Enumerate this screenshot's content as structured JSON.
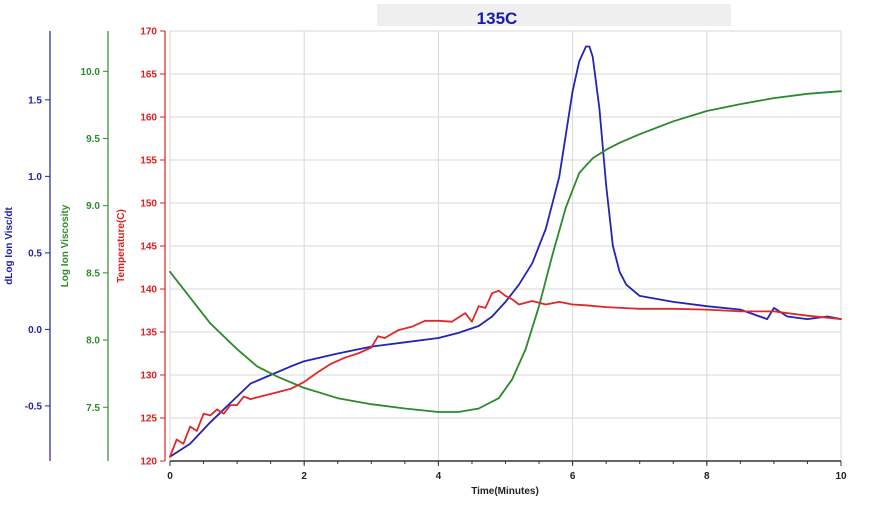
{
  "chart_data": {
    "type": "line",
    "title": "135C",
    "xlabel": "Time(Minutes)",
    "xlim": [
      0,
      10
    ],
    "x_ticks": [
      "0",
      "2",
      "4",
      "6",
      "8",
      "10"
    ],
    "grid": true,
    "legend": "none",
    "y_axes": [
      {
        "id": "dlog",
        "label": "dLog Ion Visc/dt",
        "color": "#2323a5",
        "ylim": [
          -0.86,
          1.95
        ],
        "ticks": [
          "-0.5",
          "0.0",
          "0.5",
          "1.0",
          "1.5"
        ]
      },
      {
        "id": "logvisc",
        "label": "Log Ion Viscosity",
        "color": "#2e8b2e",
        "ylim": [
          7.1,
          10.3
        ],
        "ticks": [
          "7.5",
          "8.0",
          "8.5",
          "9.0",
          "9.5",
          "10.0"
        ]
      },
      {
        "id": "temp",
        "label": "Temperature(C)",
        "color": "#e02020",
        "ylim": [
          120,
          170
        ],
        "ticks": [
          "120",
          "125",
          "130",
          "135",
          "140",
          "145",
          "150",
          "155",
          "160",
          "165",
          "170"
        ]
      }
    ],
    "series": [
      {
        "axis": "temp",
        "color": "#2323b4",
        "x": [
          0,
          0.3,
          0.6,
          1.0,
          1.2,
          1.5,
          1.8,
          2.0,
          2.5,
          3.0,
          3.5,
          4.0,
          4.3,
          4.6,
          4.8,
          5.0,
          5.2,
          5.4,
          5.6,
          5.8,
          5.9,
          6.0,
          6.1,
          6.2,
          6.25,
          6.3,
          6.4,
          6.5,
          6.6,
          6.7,
          6.8,
          7.0,
          7.5,
          8.0,
          8.5,
          8.9,
          9.0,
          9.2,
          9.5,
          9.8,
          10.0
        ],
        "y": [
          120.5,
          122,
          124.5,
          127.5,
          129,
          130,
          131,
          131.6,
          132.5,
          133.3,
          133.8,
          134.3,
          134.9,
          135.7,
          136.8,
          138.5,
          140.5,
          143,
          147,
          153,
          158,
          163,
          166.5,
          168.2,
          168.2,
          167,
          161,
          152,
          145,
          142,
          140.5,
          139.2,
          138.5,
          138.0,
          137.6,
          136.5,
          137.8,
          136.8,
          136.5,
          136.8,
          136.5
        ]
      },
      {
        "axis": "temp",
        "color": "#2b8a2b",
        "x": [
          0,
          0.3,
          0.6,
          1.0,
          1.3,
          1.6,
          2.0,
          2.5,
          3.0,
          3.5,
          4.0,
          4.3,
          4.6,
          4.9,
          5.1,
          5.3,
          5.5,
          5.7,
          5.9,
          6.1,
          6.3,
          6.5,
          6.7,
          7.0,
          7.5,
          8.0,
          8.5,
          9.0,
          9.5,
          10.0
        ],
        "y": [
          142,
          139,
          136,
          133,
          131,
          129.8,
          128.5,
          127.3,
          126.6,
          126.1,
          125.7,
          125.7,
          126.1,
          127.3,
          129.5,
          133,
          138,
          144,
          149.5,
          153.5,
          155.2,
          156.2,
          157,
          158,
          159.5,
          160.7,
          161.5,
          162.2,
          162.7,
          163
        ]
      },
      {
        "axis": "temp",
        "color": "#e02828",
        "x": [
          0,
          0.1,
          0.2,
          0.3,
          0.4,
          0.5,
          0.6,
          0.7,
          0.8,
          0.9,
          1.0,
          1.1,
          1.2,
          1.4,
          1.6,
          1.8,
          2.0,
          2.2,
          2.4,
          2.6,
          2.8,
          3.0,
          3.1,
          3.2,
          3.4,
          3.6,
          3.8,
          4.0,
          4.2,
          4.4,
          4.5,
          4.6,
          4.7,
          4.8,
          4.9,
          5.0,
          5.1,
          5.2,
          5.4,
          5.6,
          5.8,
          6.0,
          6.2,
          6.5,
          7.0,
          7.5,
          8.0,
          8.5,
          9.0,
          9.5,
          10.0
        ],
        "y": [
          120.5,
          122.5,
          122,
          124,
          123.5,
          125.5,
          125.3,
          126,
          125.5,
          126.5,
          126.5,
          127.5,
          127.2,
          127.6,
          128,
          128.4,
          129.2,
          130.3,
          131.3,
          132,
          132.5,
          133.2,
          134.5,
          134.3,
          135.2,
          135.6,
          136.3,
          136.3,
          136.2,
          137.2,
          136.2,
          138,
          137.8,
          139.5,
          139.8,
          139.2,
          138.8,
          138.2,
          138.6,
          138.2,
          138.5,
          138.2,
          138.1,
          137.9,
          137.7,
          137.7,
          137.6,
          137.4,
          137.4,
          136.9,
          136.5
        ]
      }
    ]
  }
}
